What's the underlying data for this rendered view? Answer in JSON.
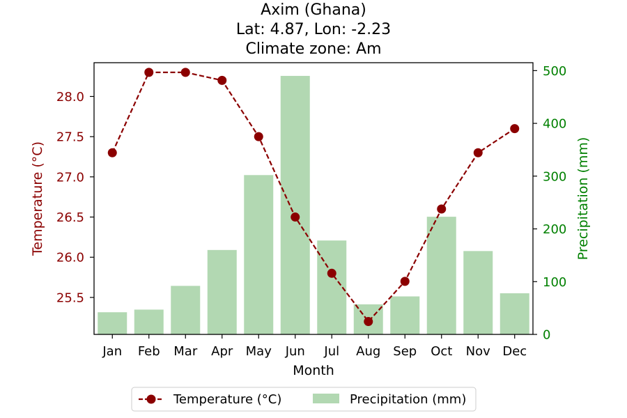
{
  "chart_data": {
    "type": "bar+line",
    "title_lines": [
      "Axim (Ghana)",
      "Lat: 4.87, Lon: -2.23",
      "Climate zone: Am"
    ],
    "xlabel": "Month",
    "ylabel_left": "Temperature (°C)",
    "ylabel_right": "Precipitation (mm)",
    "categories": [
      "Jan",
      "Feb",
      "Mar",
      "Apr",
      "May",
      "Jun",
      "Jul",
      "Aug",
      "Sep",
      "Oct",
      "Nov",
      "Dec"
    ],
    "temperature": {
      "name": "Temperature (°C)",
      "values": [
        27.3,
        28.3,
        28.3,
        28.2,
        27.5,
        26.5,
        25.8,
        25.2,
        25.7,
        26.6,
        27.3,
        27.6
      ],
      "color": "#8b0000",
      "ylim": [
        25.04,
        28.42
      ],
      "ticks": [
        25.5,
        26.0,
        26.5,
        27.0,
        27.5,
        28.0
      ],
      "tick_labels": [
        "25.5",
        "26.0",
        "26.5",
        "27.0",
        "27.5",
        "28.0"
      ]
    },
    "precipitation": {
      "name": "Precipitation (mm)",
      "values": [
        42,
        47,
        92,
        160,
        302,
        490,
        178,
        57,
        72,
        223,
        158,
        78
      ],
      "color": "#b2d8b2",
      "ylim": [
        0,
        515
      ],
      "ticks": [
        0,
        100,
        200,
        300,
        400,
        500
      ],
      "tick_labels": [
        "0",
        "100",
        "200",
        "300",
        "400",
        "500"
      ]
    },
    "axis_colors": {
      "left": "#8b0000",
      "right": "#008000"
    },
    "legend_position": "bottom-center",
    "grid": false
  }
}
